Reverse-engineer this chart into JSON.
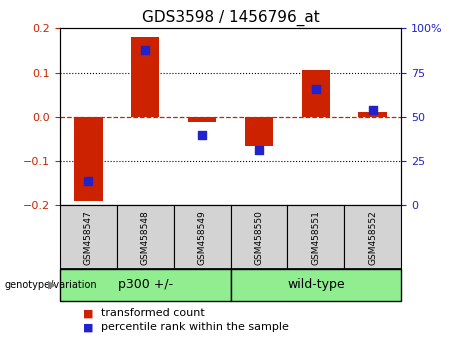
{
  "title": "GDS3598 / 1456796_at",
  "samples": [
    "GSM458547",
    "GSM458548",
    "GSM458549",
    "GSM458550",
    "GSM458551",
    "GSM458552"
  ],
  "red_values": [
    -0.19,
    0.18,
    -0.012,
    -0.065,
    0.105,
    0.01
  ],
  "blue_values_left": [
    -0.145,
    0.15,
    -0.042,
    -0.075,
    0.062,
    0.015
  ],
  "ylim": [
    -0.2,
    0.2
  ],
  "yticks_left": [
    -0.2,
    -0.1,
    0.0,
    0.1,
    0.2
  ],
  "yticks_right": [
    0,
    25,
    50,
    75,
    100
  ],
  "right_ylim": [
    0,
    100
  ],
  "bar_color": "#cc2200",
  "dot_color": "#2222cc",
  "zero_line_color": "#cc2200",
  "grid_color": "#000000",
  "bar_width": 0.5,
  "dot_size": 28,
  "title_fontsize": 11,
  "tick_fontsize": 8,
  "legend_fontsize": 8,
  "sample_label_bg": "#d3d3d3",
  "group_bg": "#90ee90"
}
